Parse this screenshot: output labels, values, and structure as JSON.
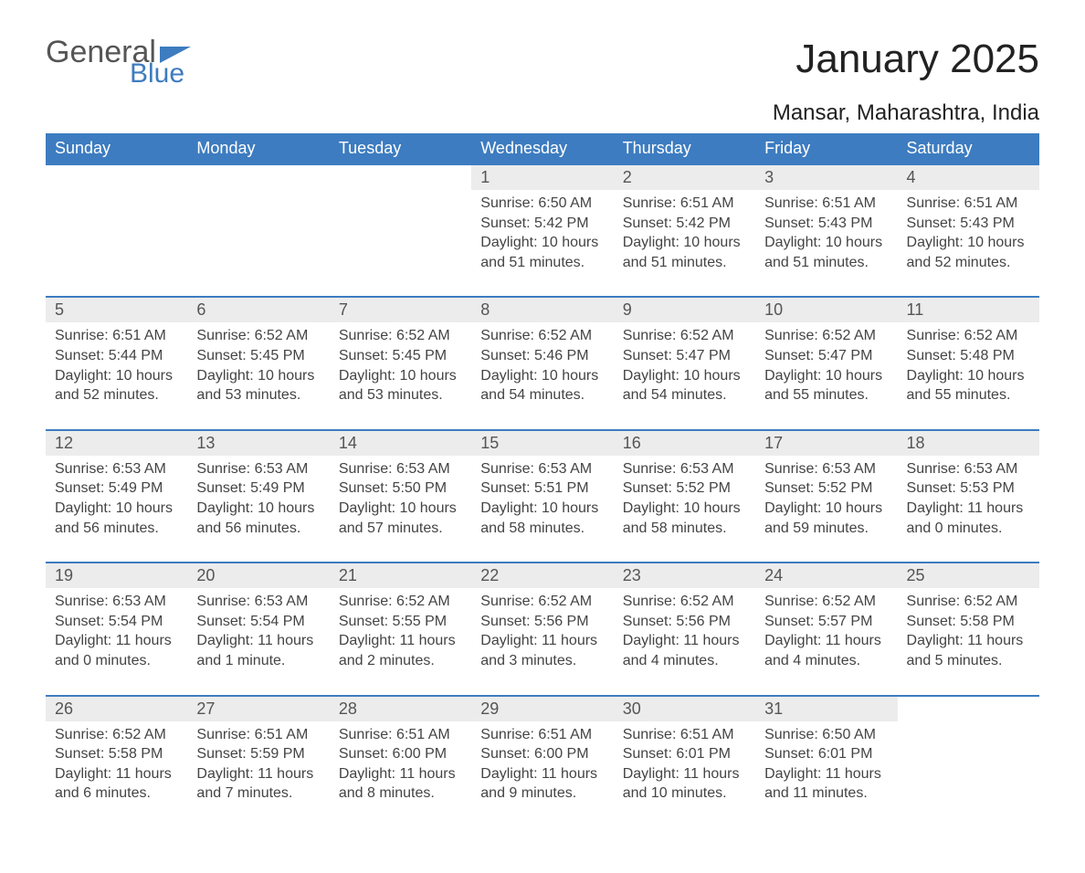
{
  "logo": {
    "text1": "General",
    "text2": "Blue"
  },
  "title": "January 2025",
  "location": "Mansar, Maharashtra, India",
  "colors": {
    "header_bg": "#3d7cc0",
    "header_text": "#ffffff",
    "daynum_bg": "#ececec",
    "border_top": "#3d7cc0",
    "body_bg": "#ffffff",
    "text": "#444444"
  },
  "day_headers": [
    "Sunday",
    "Monday",
    "Tuesday",
    "Wednesday",
    "Thursday",
    "Friday",
    "Saturday"
  ],
  "weeks": [
    {
      "nums": [
        "",
        "",
        "",
        "1",
        "2",
        "3",
        "4"
      ],
      "cells": [
        null,
        null,
        null,
        {
          "sunrise": "6:50 AM",
          "sunset": "5:42 PM",
          "daylight": "10 hours and 51 minutes."
        },
        {
          "sunrise": "6:51 AM",
          "sunset": "5:42 PM",
          "daylight": "10 hours and 51 minutes."
        },
        {
          "sunrise": "6:51 AM",
          "sunset": "5:43 PM",
          "daylight": "10 hours and 51 minutes."
        },
        {
          "sunrise": "6:51 AM",
          "sunset": "5:43 PM",
          "daylight": "10 hours and 52 minutes."
        }
      ]
    },
    {
      "nums": [
        "5",
        "6",
        "7",
        "8",
        "9",
        "10",
        "11"
      ],
      "cells": [
        {
          "sunrise": "6:51 AM",
          "sunset": "5:44 PM",
          "daylight": "10 hours and 52 minutes."
        },
        {
          "sunrise": "6:52 AM",
          "sunset": "5:45 PM",
          "daylight": "10 hours and 53 minutes."
        },
        {
          "sunrise": "6:52 AM",
          "sunset": "5:45 PM",
          "daylight": "10 hours and 53 minutes."
        },
        {
          "sunrise": "6:52 AM",
          "sunset": "5:46 PM",
          "daylight": "10 hours and 54 minutes."
        },
        {
          "sunrise": "6:52 AM",
          "sunset": "5:47 PM",
          "daylight": "10 hours and 54 minutes."
        },
        {
          "sunrise": "6:52 AM",
          "sunset": "5:47 PM",
          "daylight": "10 hours and 55 minutes."
        },
        {
          "sunrise": "6:52 AM",
          "sunset": "5:48 PM",
          "daylight": "10 hours and 55 minutes."
        }
      ]
    },
    {
      "nums": [
        "12",
        "13",
        "14",
        "15",
        "16",
        "17",
        "18"
      ],
      "cells": [
        {
          "sunrise": "6:53 AM",
          "sunset": "5:49 PM",
          "daylight": "10 hours and 56 minutes."
        },
        {
          "sunrise": "6:53 AM",
          "sunset": "5:49 PM",
          "daylight": "10 hours and 56 minutes."
        },
        {
          "sunrise": "6:53 AM",
          "sunset": "5:50 PM",
          "daylight": "10 hours and 57 minutes."
        },
        {
          "sunrise": "6:53 AM",
          "sunset": "5:51 PM",
          "daylight": "10 hours and 58 minutes."
        },
        {
          "sunrise": "6:53 AM",
          "sunset": "5:52 PM",
          "daylight": "10 hours and 58 minutes."
        },
        {
          "sunrise": "6:53 AM",
          "sunset": "5:52 PM",
          "daylight": "10 hours and 59 minutes."
        },
        {
          "sunrise": "6:53 AM",
          "sunset": "5:53 PM",
          "daylight": "11 hours and 0 minutes."
        }
      ]
    },
    {
      "nums": [
        "19",
        "20",
        "21",
        "22",
        "23",
        "24",
        "25"
      ],
      "cells": [
        {
          "sunrise": "6:53 AM",
          "sunset": "5:54 PM",
          "daylight": "11 hours and 0 minutes."
        },
        {
          "sunrise": "6:53 AM",
          "sunset": "5:54 PM",
          "daylight": "11 hours and 1 minute."
        },
        {
          "sunrise": "6:52 AM",
          "sunset": "5:55 PM",
          "daylight": "11 hours and 2 minutes."
        },
        {
          "sunrise": "6:52 AM",
          "sunset": "5:56 PM",
          "daylight": "11 hours and 3 minutes."
        },
        {
          "sunrise": "6:52 AM",
          "sunset": "5:56 PM",
          "daylight": "11 hours and 4 minutes."
        },
        {
          "sunrise": "6:52 AM",
          "sunset": "5:57 PM",
          "daylight": "11 hours and 4 minutes."
        },
        {
          "sunrise": "6:52 AM",
          "sunset": "5:58 PM",
          "daylight": "11 hours and 5 minutes."
        }
      ]
    },
    {
      "nums": [
        "26",
        "27",
        "28",
        "29",
        "30",
        "31",
        ""
      ],
      "cells": [
        {
          "sunrise": "6:52 AM",
          "sunset": "5:58 PM",
          "daylight": "11 hours and 6 minutes."
        },
        {
          "sunrise": "6:51 AM",
          "sunset": "5:59 PM",
          "daylight": "11 hours and 7 minutes."
        },
        {
          "sunrise": "6:51 AM",
          "sunset": "6:00 PM",
          "daylight": "11 hours and 8 minutes."
        },
        {
          "sunrise": "6:51 AM",
          "sunset": "6:00 PM",
          "daylight": "11 hours and 9 minutes."
        },
        {
          "sunrise": "6:51 AM",
          "sunset": "6:01 PM",
          "daylight": "11 hours and 10 minutes."
        },
        {
          "sunrise": "6:50 AM",
          "sunset": "6:01 PM",
          "daylight": "11 hours and 11 minutes."
        },
        null
      ]
    }
  ],
  "labels": {
    "sunrise": "Sunrise: ",
    "sunset": "Sunset: ",
    "daylight": "Daylight: "
  }
}
